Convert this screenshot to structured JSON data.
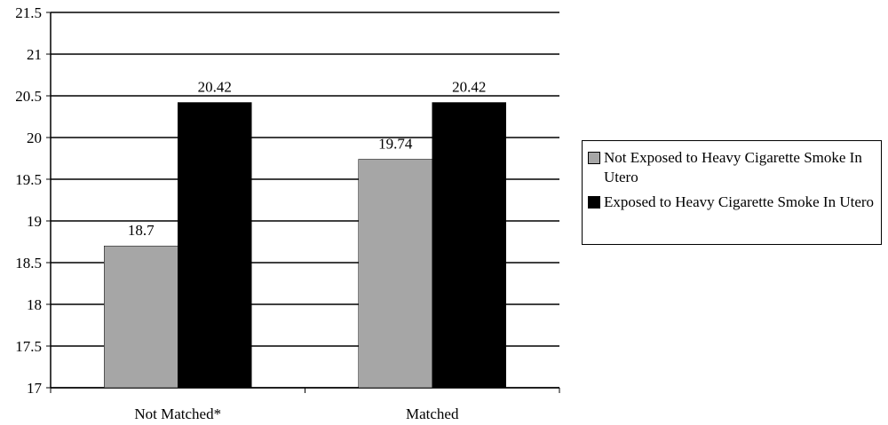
{
  "chart_data": {
    "type": "bar",
    "categories": [
      "Not Matched*",
      "Matched"
    ],
    "series": [
      {
        "name": "Not Exposed to Heavy Cigarette Smoke In Utero",
        "color": "#a6a6a6",
        "values": [
          18.7,
          19.74
        ]
      },
      {
        "name": "Exposed to Heavy Cigarette Smoke In Utero",
        "color": "#000000",
        "values": [
          20.42,
          20.42
        ]
      }
    ],
    "ylim": [
      17,
      21.5
    ],
    "yticks": [
      17,
      17.5,
      18,
      18.5,
      19,
      19.5,
      20,
      20.5,
      21,
      21.5
    ],
    "grid": true,
    "legend": "right"
  }
}
